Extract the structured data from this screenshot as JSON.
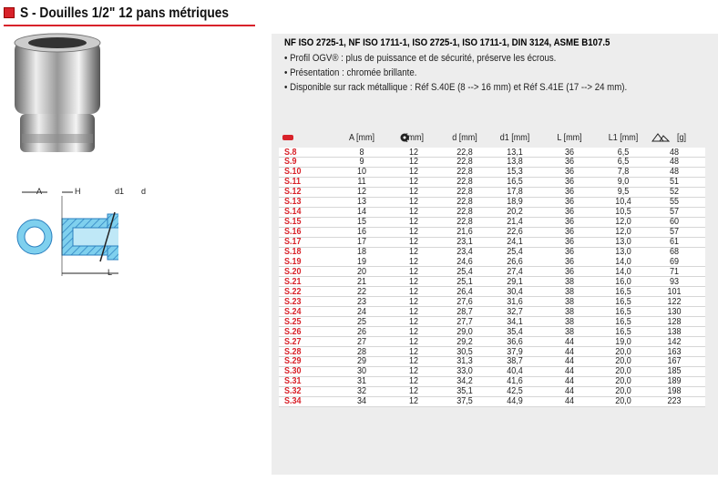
{
  "header": {
    "title": "S - Douilles 1/2\" 12 pans métriques"
  },
  "diagram": {
    "labels": [
      "A",
      "H",
      "d1",
      "d",
      "L"
    ]
  },
  "description": {
    "standards": "NF ISO 2725-1, NF ISO 1711-1, ISO 2725-1, ISO 1711-1, DIN 3124, ASME B107.5",
    "bullets": [
      "• Profil OGV® : plus de puissance et de sécurité, préserve les écrous.",
      "• Présentation : chromée brillante.",
      "• Disponible sur rack métallique : Réf S.40E (8 --> 16 mm) et Réf S.41E (17 --> 24 mm)."
    ]
  },
  "table": {
    "columns": [
      "A [mm]",
      "[mm]",
      "d [mm]",
      "d1 [mm]",
      "L [mm]",
      "L1 [mm]",
      "[g]"
    ],
    "rows": [
      [
        "S.8",
        "8",
        "12",
        "22,8",
        "13,1",
        "36",
        "6,5",
        "48"
      ],
      [
        "S.9",
        "9",
        "12",
        "22,8",
        "13,8",
        "36",
        "6,5",
        "48"
      ],
      [
        "S.10",
        "10",
        "12",
        "22,8",
        "15,3",
        "36",
        "7,8",
        "48"
      ],
      [
        "S.11",
        "11",
        "12",
        "22,8",
        "16,5",
        "36",
        "9,0",
        "51"
      ],
      [
        "S.12",
        "12",
        "12",
        "22,8",
        "17,8",
        "36",
        "9,5",
        "52"
      ],
      [
        "S.13",
        "13",
        "12",
        "22,8",
        "18,9",
        "36",
        "10,4",
        "55"
      ],
      [
        "S.14",
        "14",
        "12",
        "22,8",
        "20,2",
        "36",
        "10,5",
        "57"
      ],
      [
        "S.15",
        "15",
        "12",
        "22,8",
        "21,4",
        "36",
        "12,0",
        "60"
      ],
      [
        "S.16",
        "16",
        "12",
        "21,6",
        "22,6",
        "36",
        "12,0",
        "57"
      ],
      [
        "S.17",
        "17",
        "12",
        "23,1",
        "24,1",
        "36",
        "13,0",
        "61"
      ],
      [
        "S.18",
        "18",
        "12",
        "23,4",
        "25,4",
        "36",
        "13,0",
        "68"
      ],
      [
        "S.19",
        "19",
        "12",
        "24,6",
        "26,6",
        "36",
        "14,0",
        "69"
      ],
      [
        "S.20",
        "20",
        "12",
        "25,4",
        "27,4",
        "36",
        "14,0",
        "71"
      ],
      [
        "S.21",
        "21",
        "12",
        "25,1",
        "29,1",
        "38",
        "16,0",
        "93"
      ],
      [
        "S.22",
        "22",
        "12",
        "26,4",
        "30,4",
        "38",
        "16,5",
        "101"
      ],
      [
        "S.23",
        "23",
        "12",
        "27,6",
        "31,6",
        "38",
        "16,5",
        "122"
      ],
      [
        "S.24",
        "24",
        "12",
        "28,7",
        "32,7",
        "38",
        "16,5",
        "130"
      ],
      [
        "S.25",
        "25",
        "12",
        "27,7",
        "34,1",
        "38",
        "16,5",
        "128"
      ],
      [
        "S.26",
        "26",
        "12",
        "29,0",
        "35,4",
        "38",
        "16,5",
        "138"
      ],
      [
        "S.27",
        "27",
        "12",
        "29,2",
        "36,6",
        "44",
        "19,0",
        "142"
      ],
      [
        "S.28",
        "28",
        "12",
        "30,5",
        "37,9",
        "44",
        "20,0",
        "163"
      ],
      [
        "S.29",
        "29",
        "12",
        "31,3",
        "38,7",
        "44",
        "20,0",
        "167"
      ],
      [
        "S.30",
        "30",
        "12",
        "33,0",
        "40,4",
        "44",
        "20,0",
        "185"
      ],
      [
        "S.31",
        "31",
        "12",
        "34,2",
        "41,6",
        "44",
        "20,0",
        "189"
      ],
      [
        "S.32",
        "32",
        "12",
        "35,1",
        "42,5",
        "44",
        "20,0",
        "198"
      ],
      [
        "S.34",
        "34",
        "12",
        "37,5",
        "44,9",
        "44",
        "20,0",
        "223"
      ]
    ]
  }
}
